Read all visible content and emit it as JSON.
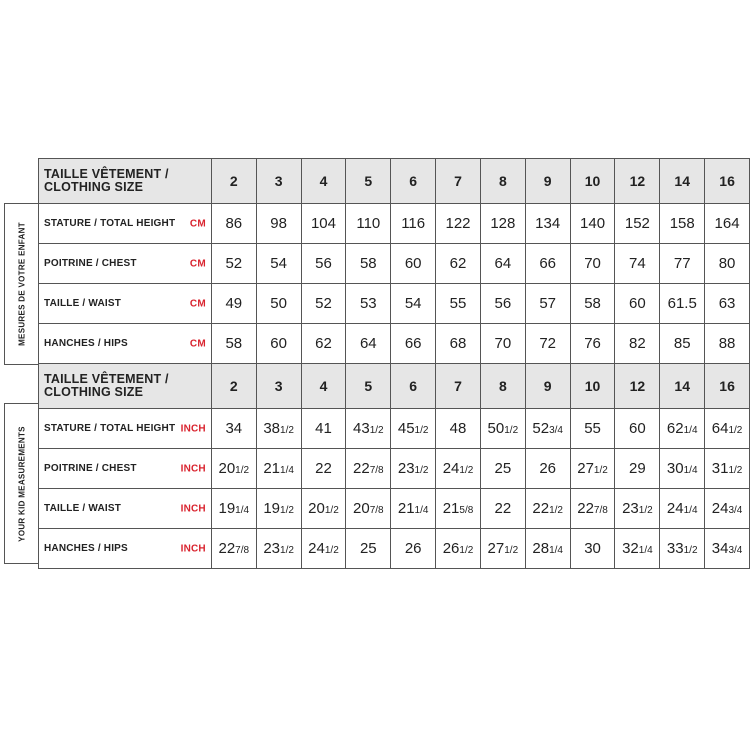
{
  "unit_color": "#d9232e",
  "header_label": "TAILLE VÊTEMENT / CLOTHING SIZE",
  "sizes": [
    "2",
    "3",
    "4",
    "5",
    "6",
    "7",
    "8",
    "9",
    "10",
    "12",
    "14",
    "16"
  ],
  "sections": [
    {
      "side_label": "MESURES DE VOTRE ENFANT",
      "unit": "CM",
      "rows": [
        {
          "label": "STATURE / TOTAL HEIGHT",
          "values": [
            "86",
            "98",
            "104",
            "110",
            "116",
            "122",
            "128",
            "134",
            "140",
            "152",
            "158",
            "164"
          ]
        },
        {
          "label": "POITRINE / CHEST",
          "values": [
            "52",
            "54",
            "56",
            "58",
            "60",
            "62",
            "64",
            "66",
            "70",
            "74",
            "77",
            "80"
          ]
        },
        {
          "label": "TAILLE / WAIST",
          "values": [
            "49",
            "50",
            "52",
            "53",
            "54",
            "55",
            "56",
            "57",
            "58",
            "60",
            "61.5",
            "63"
          ]
        },
        {
          "label": "HANCHES / HIPS",
          "values": [
            "58",
            "60",
            "62",
            "64",
            "66",
            "68",
            "70",
            "72",
            "76",
            "82",
            "85",
            "88"
          ]
        }
      ]
    },
    {
      "side_label": "YOUR KID MEASUREMENTS",
      "unit": "INCH",
      "rows": [
        {
          "label": "STATURE / TOTAL HEIGHT",
          "values": [
            "34",
            "38 1/2",
            "41",
            "43 1/2",
            "45 1/2",
            "48",
            "50 1/2",
            "52 3/4",
            "55",
            "60",
            "62 1/4",
            "64 1/2"
          ]
        },
        {
          "label": "POITRINE / CHEST",
          "values": [
            "20 1/2",
            "21 1/4",
            "22",
            "22 7/8",
            "23 1/2",
            "24 1/2",
            "25",
            "26",
            "27 1/2",
            "29",
            "30 1/4",
            "31 1/2"
          ]
        },
        {
          "label": "TAILLE / WAIST",
          "values": [
            "19 1/4",
            "19 1/2",
            "20 1/2",
            "20 7/8",
            "21 1/4",
            "21 5/8",
            "22",
            "22 1/2",
            "22 7/8",
            "23 1/2",
            "24 1/4",
            "24 3/4"
          ]
        },
        {
          "label": "HANCHES / HIPS",
          "values": [
            "22 7/8",
            "23 1/2",
            "24 1/2",
            "25",
            "26",
            "26 1/2",
            "27 1/2",
            "28 1/4",
            "30",
            "32 1/4",
            "33 1/2",
            "34 3/4"
          ]
        }
      ]
    }
  ]
}
